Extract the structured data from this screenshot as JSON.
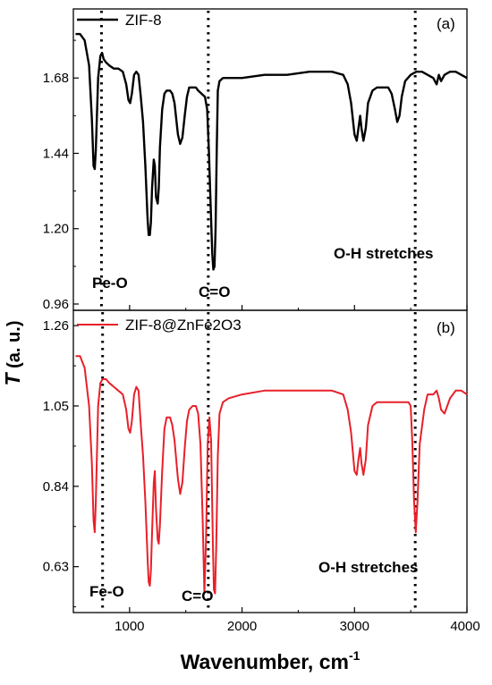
{
  "chart_data": [
    {
      "type": "line",
      "panel_label": "(a)",
      "xlim": [
        500,
        4000
      ],
      "ylim": [
        0.94,
        1.9
      ],
      "x_ticks": [
        1000,
        2000,
        3000,
        4000
      ],
      "y_ticks": [
        0.96,
        1.2,
        1.44,
        1.68
      ],
      "y_tick_labels": [
        "0.96",
        "1.20",
        "1.44",
        "1.68"
      ],
      "legend_position": "top-left",
      "series": [
        {
          "name": "ZIF-8",
          "color": "#000000",
          "x": [
            520,
            560,
            600,
            640,
            665,
            680,
            690,
            700,
            720,
            740,
            755,
            770,
            790,
            820,
            860,
            900,
            940,
            970,
            990,
            1005,
            1020,
            1040,
            1060,
            1080,
            1100,
            1120,
            1140,
            1160,
            1170,
            1180,
            1190,
            1200,
            1215,
            1225,
            1235,
            1250,
            1260,
            1270,
            1290,
            1310,
            1330,
            1360,
            1380,
            1400,
            1430,
            1450,
            1470,
            1490,
            1510,
            1530,
            1560,
            1590,
            1610,
            1640,
            1670,
            1690,
            1705,
            1720,
            1735,
            1745,
            1755,
            1765,
            1775,
            1785,
            1800,
            1830,
            1880,
            2000,
            2200,
            2400,
            2600,
            2800,
            2900,
            2940,
            2970,
            3000,
            3020,
            3035,
            3050,
            3062,
            3080,
            3100,
            3120,
            3160,
            3200,
            3260,
            3300,
            3330,
            3360,
            3380,
            3400,
            3420,
            3450,
            3500,
            3550,
            3600,
            3650,
            3700,
            3730,
            3750,
            3770,
            3800,
            3850,
            3900,
            3950,
            4000
          ],
          "y": [
            1.82,
            1.82,
            1.8,
            1.72,
            1.55,
            1.4,
            1.39,
            1.45,
            1.68,
            1.75,
            1.76,
            1.74,
            1.73,
            1.72,
            1.71,
            1.71,
            1.7,
            1.66,
            1.61,
            1.6,
            1.63,
            1.69,
            1.7,
            1.69,
            1.62,
            1.54,
            1.4,
            1.23,
            1.18,
            1.18,
            1.22,
            1.33,
            1.42,
            1.4,
            1.3,
            1.28,
            1.33,
            1.46,
            1.58,
            1.63,
            1.64,
            1.64,
            1.63,
            1.6,
            1.5,
            1.47,
            1.49,
            1.56,
            1.62,
            1.65,
            1.65,
            1.65,
            1.64,
            1.63,
            1.62,
            1.58,
            1.45,
            1.28,
            1.12,
            1.07,
            1.08,
            1.2,
            1.45,
            1.64,
            1.67,
            1.68,
            1.68,
            1.68,
            1.69,
            1.69,
            1.7,
            1.7,
            1.69,
            1.66,
            1.6,
            1.5,
            1.48,
            1.52,
            1.56,
            1.52,
            1.48,
            1.52,
            1.6,
            1.64,
            1.65,
            1.65,
            1.65,
            1.63,
            1.58,
            1.54,
            1.56,
            1.62,
            1.67,
            1.69,
            1.7,
            1.7,
            1.69,
            1.68,
            1.66,
            1.69,
            1.67,
            1.69,
            1.7,
            1.7,
            1.69,
            1.68
          ]
        }
      ],
      "guide_lines_x": [
        750,
        1700,
        3540
      ],
      "annotations": [
        "Pe-O",
        "C=O",
        "O-H stretches"
      ]
    },
    {
      "type": "line",
      "panel_label": "(b)",
      "xlim": [
        500,
        4000
      ],
      "ylim": [
        0.51,
        1.3
      ],
      "x_ticks": [
        1000,
        2000,
        3000,
        4000
      ],
      "x_tick_labels": [
        "1000",
        "2000",
        "3000",
        "4000"
      ],
      "y_ticks": [
        0.63,
        0.84,
        1.05,
        1.26
      ],
      "y_tick_labels": [
        "0.63",
        "0.84",
        "1.05",
        "1.26"
      ],
      "legend_position": "top-left",
      "series": [
        {
          "name": "ZIF-8@ZnFe2O3",
          "color": "#e8202a",
          "x": [
            520,
            560,
            600,
            640,
            665,
            680,
            690,
            700,
            720,
            740,
            760,
            790,
            820,
            860,
            900,
            940,
            970,
            990,
            1005,
            1020,
            1040,
            1060,
            1080,
            1100,
            1120,
            1140,
            1160,
            1170,
            1180,
            1190,
            1200,
            1215,
            1225,
            1235,
            1250,
            1260,
            1270,
            1290,
            1310,
            1330,
            1360,
            1380,
            1400,
            1430,
            1450,
            1470,
            1490,
            1510,
            1530,
            1560,
            1590,
            1610,
            1630,
            1650,
            1665,
            1680,
            1695,
            1710,
            1725,
            1740,
            1750,
            1760,
            1770,
            1785,
            1800,
            1830,
            1880,
            2000,
            2200,
            2400,
            2600,
            2800,
            2900,
            2940,
            2970,
            3000,
            3020,
            3035,
            3050,
            3062,
            3080,
            3100,
            3120,
            3160,
            3200,
            3260,
            3300,
            3350,
            3400,
            3450,
            3480,
            3500,
            3515,
            3530,
            3545,
            3560,
            3580,
            3620,
            3650,
            3700,
            3730,
            3750,
            3770,
            3800,
            3850,
            3900,
            3950,
            4000
          ],
          "y": [
            1.18,
            1.18,
            1.15,
            1.05,
            0.9,
            0.75,
            0.72,
            0.8,
            1.05,
            1.11,
            1.12,
            1.12,
            1.11,
            1.1,
            1.09,
            1.08,
            1.04,
            0.99,
            0.98,
            1.01,
            1.08,
            1.1,
            1.09,
            1.0,
            0.92,
            0.8,
            0.65,
            0.59,
            0.58,
            0.62,
            0.72,
            0.85,
            0.88,
            0.78,
            0.7,
            0.69,
            0.74,
            0.88,
            0.99,
            1.02,
            1.02,
            1.0,
            0.96,
            0.86,
            0.82,
            0.85,
            0.94,
            1.01,
            1.04,
            1.05,
            1.05,
            1.03,
            0.95,
            0.75,
            0.56,
            0.7,
            0.95,
            1.02,
            0.96,
            0.7,
            0.57,
            0.56,
            0.68,
            0.92,
            1.03,
            1.06,
            1.07,
            1.08,
            1.09,
            1.09,
            1.09,
            1.09,
            1.08,
            1.04,
            0.98,
            0.88,
            0.87,
            0.91,
            0.94,
            0.9,
            0.87,
            0.91,
            1.0,
            1.05,
            1.06,
            1.06,
            1.06,
            1.06,
            1.06,
            1.06,
            1.06,
            1.05,
            0.95,
            0.8,
            0.72,
            0.8,
            0.95,
            1.04,
            1.08,
            1.08,
            1.09,
            1.07,
            1.04,
            1.03,
            1.07,
            1.09,
            1.09,
            1.08
          ]
        }
      ],
      "guide_lines_x": [
        760,
        1700,
        3540
      ],
      "annotations": [
        "Fe-O",
        "C=O",
        "O-H stretches"
      ]
    }
  ],
  "axes": {
    "ylabel_symbol": "T",
    "ylabel_unit": " (a. u.)",
    "xlabel_text": "Wavenumber, cm",
    "xlabel_superscript": "-1"
  }
}
